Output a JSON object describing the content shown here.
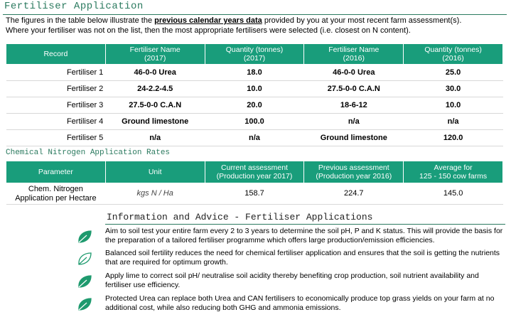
{
  "header": {
    "title": "Fertiliser Application",
    "intro": {
      "before": "The figures in the table below illustrate the ",
      "emphasis": "previous calendar years data",
      "after": " provided by you at your most recent farm assessment(s).",
      "line2": "Where your fertiliser was not on the list, then the most appropriate fertilisers were selected (i.e. closest on N content)."
    }
  },
  "fertiliser_table": {
    "columns": [
      "Record",
      "Fertiliser Name\n(2017)",
      "Quantity (tonnes)\n(2017)",
      "Fertiliser Name\n(2016)",
      "Quantity (tonnes)\n(2016)"
    ],
    "rows": [
      [
        "Fertiliser 1",
        "46-0-0 Urea",
        "18.0",
        "46-0-0 Urea",
        "25.0"
      ],
      [
        "Fertiliser 2",
        "24-2.2-4.5",
        "10.0",
        "27.5-0-0 C.A.N",
        "30.0"
      ],
      [
        "Fertiliser 3",
        "27.5-0-0 C.A.N",
        "20.0",
        "18-6-12",
        "10.0"
      ],
      [
        "Fertiliser 4",
        "Ground limestone",
        "100.0",
        "n/a",
        "n/a"
      ],
      [
        "Fertiliser 5",
        "n/a",
        "n/a",
        "Ground limestone",
        "120.0"
      ]
    ]
  },
  "nitrogen": {
    "title": "Chemical Nitrogen Application Rates",
    "columns": [
      "Parameter",
      "Unit",
      "Current assessment\n(Production year 2017)",
      "Previous assessment\n(Production year 2016)",
      "Average for\n125 - 150 cow farms"
    ],
    "rows": [
      [
        "Chem. Nitrogen\nApplication per Hectare",
        "kgs N / Ha",
        "158.7",
        "224.7",
        "145.0"
      ]
    ]
  },
  "advice": {
    "title": "Information and Advice - Fertiliser Applications",
    "items": [
      "Aim to soil test your entire farm every 2 to 3 years to determine the soil pH, P and K status.  This will provide the basis for the preparation of a tailored fertiliser programme which offers large production/emission efficiencies.",
      "Balanced soil fertility reduces the need for chemical fertiliser application and ensures that the soil is getting the nutrients that are required for optimum growth.",
      "Apply lime to correct soil pH/ neutralise soil acidity thereby benefiting crop production, soil nutrient availability and fertiliser use efficiency.",
      "Protected Urea can replace both Urea and CAN fertilisers to economically produce top grass yields on your farm at no additional cost, while also reducing both GHG and ammonia emissions."
    ]
  }
}
